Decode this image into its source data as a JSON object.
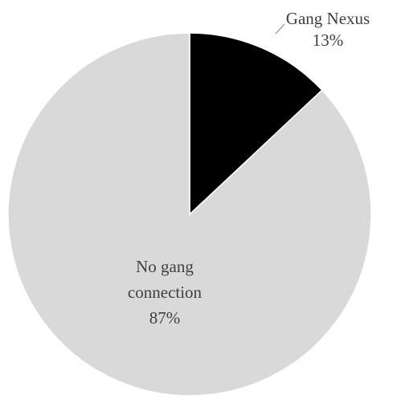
{
  "chart_data": {
    "type": "pie",
    "title": "",
    "slices": [
      {
        "label_lines": [
          "Gang Nexus"
        ],
        "value_label": "13%",
        "value": 13,
        "color": "#000000"
      },
      {
        "label_lines": [
          "No gang",
          "connection"
        ],
        "value_label": "87%",
        "value": 87,
        "color": "#d9d9d9"
      }
    ],
    "slice_border_color": "#ffffff",
    "leader_line_color": "#7f7f7f",
    "legend": "none"
  }
}
